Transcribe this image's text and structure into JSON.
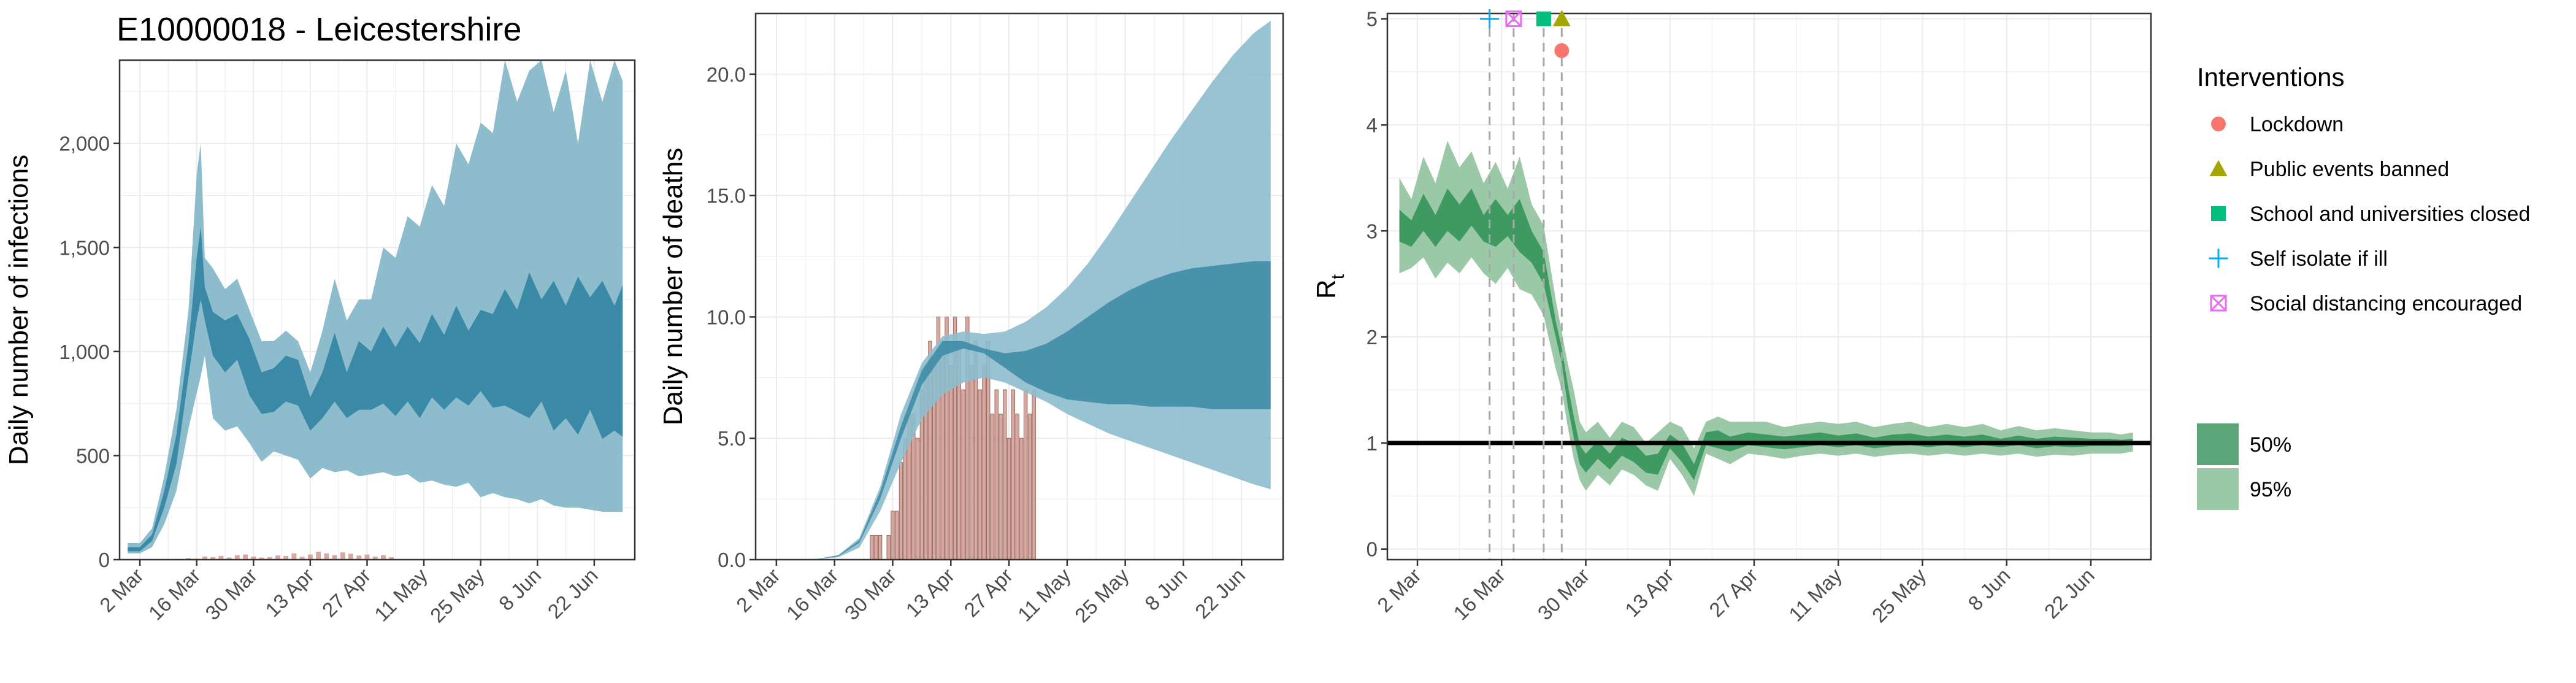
{
  "title": "E10000018 - Leicestershire",
  "x_tick_labels": [
    "2 Mar",
    "16 Mar",
    "30 Mar",
    "13 Apr",
    "27 Apr",
    "11 May",
    "25 May",
    "8 Jun",
    "22 Jun"
  ],
  "colors": {
    "infections_50": "#3a89a6",
    "infections_95": "#8dbdcd",
    "deaths_50": "#3a89a6",
    "deaths_95": "#8dbdcd",
    "deaths_bar": "#d19a90",
    "rt_50": "#3f9a62",
    "rt_95": "#9bc9a8",
    "lockdown": "#f8766d",
    "public_events": "#a3a500",
    "school": "#00bf7d",
    "self_isolate": "#00b0f6",
    "social_distancing": "#e76bf3",
    "grid": "#ebebeb",
    "panel_border": "#333333"
  },
  "chart_data": [
    {
      "name": "infections",
      "type": "area",
      "ylabel": "Daily number of infections",
      "xlim_days": [
        -5,
        122
      ],
      "ylim": [
        0,
        2400
      ],
      "y_ticks": [
        0,
        500,
        1000,
        1500,
        2000
      ],
      "y_tick_labels": [
        "0",
        "500",
        "1,000",
        "1,500",
        "2,000"
      ],
      "grid": true,
      "series": {
        "x_days": [
          -3,
          0,
          3,
          6,
          9,
          12,
          14,
          15,
          16,
          18,
          21,
          24,
          27,
          30,
          33,
          36,
          39,
          42,
          45,
          48,
          51,
          54,
          57,
          60,
          63,
          66,
          69,
          72,
          75,
          78,
          81,
          84,
          87,
          90,
          93,
          96,
          99,
          102,
          105,
          108,
          111,
          114,
          117,
          119
        ],
        "ci95_low": [
          30,
          30,
          60,
          170,
          330,
          630,
          800,
          880,
          980,
          680,
          620,
          640,
          560,
          470,
          520,
          500,
          480,
          390,
          440,
          420,
          430,
          400,
          410,
          420,
          400,
          410,
          370,
          380,
          360,
          350,
          370,
          300,
          320,
          300,
          290,
          270,
          290,
          260,
          250,
          250,
          240,
          230,
          230,
          230
        ],
        "ci95_high": [
          80,
          80,
          150,
          400,
          720,
          1200,
          1850,
          2000,
          1450,
          1400,
          1300,
          1350,
          1200,
          1050,
          1050,
          1100,
          1050,
          900,
          1100,
          1350,
          1150,
          1250,
          1250,
          1500,
          1450,
          1650,
          1600,
          1800,
          1700,
          2000,
          1900,
          2100,
          2050,
          2400,
          2200,
          2350,
          2400,
          2150,
          2350,
          2000,
          2400,
          2200,
          2400,
          2300
        ],
        "ci50_low": [
          40,
          40,
          90,
          250,
          460,
          880,
          1150,
          1250,
          1150,
          980,
          900,
          960,
          790,
          700,
          710,
          760,
          740,
          620,
          680,
          760,
          680,
          720,
          720,
          750,
          690,
          760,
          680,
          780,
          720,
          780,
          740,
          810,
          730,
          740,
          710,
          680,
          760,
          620,
          680,
          600,
          720,
          580,
          620,
          590
        ],
        "ci50_high": [
          60,
          60,
          120,
          330,
          600,
          1040,
          1450,
          1600,
          1310,
          1190,
          1150,
          1180,
          1060,
          900,
          920,
          980,
          960,
          780,
          900,
          1090,
          900,
          1050,
          1000,
          1120,
          1020,
          1120,
          1040,
          1180,
          1080,
          1220,
          1100,
          1200,
          1180,
          1300,
          1200,
          1380,
          1250,
          1340,
          1220,
          1360,
          1260,
          1340,
          1220,
          1320
        ]
      },
      "bars_x_days": [
        10,
        12,
        14,
        16,
        18,
        20,
        22,
        24,
        26,
        28,
        30,
        32,
        34,
        36,
        38,
        40,
        42,
        44,
        46,
        48,
        50,
        52,
        54,
        56,
        58,
        60,
        62
      ],
      "bars_values": [
        3,
        8,
        5,
        15,
        12,
        18,
        10,
        22,
        25,
        15,
        10,
        12,
        20,
        18,
        30,
        14,
        25,
        38,
        30,
        22,
        35,
        28,
        20,
        25,
        15,
        22,
        12
      ]
    },
    {
      "name": "deaths",
      "type": "area",
      "ylabel": "Daily number of deaths",
      "xlim_days": [
        -5,
        122
      ],
      "ylim": [
        0,
        22.5
      ],
      "y_ticks": [
        0,
        5,
        10,
        15,
        20
      ],
      "y_tick_labels": [
        "0.0",
        "5.0",
        "10.0",
        "15.0",
        "20.0"
      ],
      "grid": true,
      "series": {
        "x_days": [
          -3,
          0,
          5,
          10,
          15,
          20,
          25,
          30,
          35,
          40,
          45,
          50,
          55,
          60,
          65,
          70,
          75,
          80,
          85,
          90,
          95,
          100,
          105,
          110,
          115,
          119
        ],
        "ci95_low": [
          0,
          0,
          0,
          0.02,
          0.1,
          0.5,
          2.0,
          4.0,
          5.8,
          6.8,
          7.3,
          7.5,
          7.3,
          6.9,
          6.5,
          6.0,
          5.6,
          5.2,
          4.9,
          4.6,
          4.3,
          4.0,
          3.7,
          3.4,
          3.1,
          2.9
        ],
        "ci95_high": [
          0,
          0,
          0,
          0.03,
          0.2,
          0.9,
          3.0,
          6.0,
          8.1,
          9.2,
          9.4,
          9.3,
          9.4,
          9.8,
          10.4,
          11.2,
          12.2,
          13.4,
          14.7,
          16.0,
          17.3,
          18.5,
          19.7,
          20.8,
          21.7,
          22.2
        ],
        "ci50_low": [
          0,
          0,
          0,
          0.02,
          0.15,
          0.7,
          2.5,
          5.0,
          7.2,
          8.4,
          8.7,
          8.5,
          7.9,
          7.3,
          6.9,
          6.6,
          6.5,
          6.4,
          6.4,
          6.3,
          6.3,
          6.3,
          6.2,
          6.2,
          6.2,
          6.2
        ],
        "ci50_high": [
          0,
          0,
          0,
          0.03,
          0.18,
          0.8,
          2.8,
          5.5,
          7.8,
          9.0,
          9.0,
          8.7,
          8.5,
          8.6,
          8.9,
          9.4,
          10.0,
          10.6,
          11.1,
          11.5,
          11.8,
          12.0,
          12.1,
          12.2,
          12.3,
          12.3
        ]
      },
      "bars_x_days": [
        22,
        23,
        24,
        25,
        26,
        27,
        28,
        29,
        30,
        31,
        32,
        33,
        34,
        35,
        36,
        37,
        38,
        39,
        40,
        41,
        42,
        43,
        44,
        45,
        46,
        47,
        48,
        49,
        50,
        51,
        52,
        53,
        54,
        55,
        56,
        57,
        58,
        59,
        60,
        61,
        62
      ],
      "bars_values": [
        0,
        1,
        1,
        1,
        0,
        1,
        2,
        2,
        4,
        5,
        6,
        6,
        5,
        7,
        8,
        9,
        8,
        10,
        9,
        10,
        8,
        10,
        9,
        7,
        10,
        8,
        9,
        7,
        8,
        9,
        6,
        7,
        6,
        7,
        5,
        7,
        6,
        5,
        7,
        6,
        7
      ]
    },
    {
      "name": "rt",
      "type": "area",
      "ylabel": "R",
      "ylabel_sub": "t",
      "xlim_days": [
        -5,
        122
      ],
      "ylim": [
        -0.1,
        5.05
      ],
      "y_ticks": [
        0,
        1,
        2,
        3,
        4,
        5
      ],
      "y_tick_labels": [
        "0",
        "1",
        "2",
        "3",
        "4",
        "5"
      ],
      "reference_line": 1,
      "grid": true,
      "series": {
        "x_days": [
          -3,
          -1,
          1,
          3,
          5,
          7,
          9,
          11,
          13,
          15,
          17,
          19,
          21,
          23,
          24,
          25,
          26,
          27,
          28,
          30,
          32,
          34,
          36,
          38,
          40,
          42,
          44,
          46,
          48,
          50,
          52,
          55,
          58,
          61,
          64,
          67,
          70,
          73,
          76,
          79,
          82,
          85,
          88,
          91,
          94,
          97,
          100,
          103,
          106,
          109,
          112,
          115,
          117,
          119
        ],
        "ci95_low": [
          2.6,
          2.65,
          2.75,
          2.55,
          2.7,
          2.6,
          2.75,
          2.6,
          2.5,
          2.65,
          2.45,
          2.4,
          2.2,
          1.7,
          1.5,
          1.15,
          0.85,
          0.65,
          0.55,
          0.7,
          0.6,
          0.75,
          0.7,
          0.6,
          0.55,
          0.85,
          0.7,
          0.5,
          0.9,
          0.85,
          0.8,
          0.9,
          0.88,
          0.85,
          0.88,
          0.9,
          0.88,
          0.9,
          0.87,
          0.89,
          0.9,
          0.88,
          0.9,
          0.88,
          0.9,
          0.88,
          0.9,
          0.87,
          0.89,
          0.88,
          0.9,
          0.9,
          0.9,
          0.92
        ],
        "ci95_high": [
          3.5,
          3.3,
          3.7,
          3.45,
          3.85,
          3.6,
          3.75,
          3.45,
          3.65,
          3.4,
          3.7,
          3.25,
          3.05,
          2.35,
          2.05,
          1.75,
          1.5,
          1.2,
          1.1,
          1.2,
          1.05,
          1.2,
          1.15,
          1.0,
          1.1,
          1.2,
          1.15,
          0.95,
          1.2,
          1.25,
          1.2,
          1.2,
          1.2,
          1.15,
          1.18,
          1.2,
          1.18,
          1.2,
          1.15,
          1.18,
          1.2,
          1.15,
          1.18,
          1.15,
          1.18,
          1.12,
          1.16,
          1.12,
          1.14,
          1.12,
          1.1,
          1.1,
          1.08,
          1.1
        ],
        "ci50_low": [
          2.9,
          2.85,
          3.0,
          2.85,
          3.0,
          2.9,
          3.05,
          2.9,
          2.85,
          2.95,
          2.8,
          2.7,
          2.5,
          2.0,
          1.75,
          1.35,
          1.05,
          0.8,
          0.72,
          0.85,
          0.75,
          0.88,
          0.82,
          0.72,
          0.7,
          0.95,
          0.82,
          0.65,
          0.98,
          0.95,
          0.92,
          0.98,
          0.96,
          0.94,
          0.96,
          0.98,
          0.96,
          0.98,
          0.95,
          0.97,
          0.98,
          0.96,
          0.98,
          0.96,
          0.98,
          0.96,
          0.98,
          0.95,
          0.97,
          0.96,
          0.97,
          0.97,
          0.97,
          0.98
        ],
        "ci50_high": [
          3.2,
          3.1,
          3.35,
          3.15,
          3.4,
          3.25,
          3.4,
          3.15,
          3.3,
          3.15,
          3.3,
          3.0,
          2.8,
          2.15,
          1.9,
          1.55,
          1.25,
          0.98,
          0.9,
          1.02,
          0.9,
          1.05,
          1.0,
          0.88,
          0.9,
          1.08,
          1.0,
          0.8,
          1.1,
          1.12,
          1.06,
          1.1,
          1.08,
          1.06,
          1.08,
          1.1,
          1.07,
          1.09,
          1.05,
          1.08,
          1.09,
          1.06,
          1.08,
          1.06,
          1.08,
          1.04,
          1.07,
          1.04,
          1.06,
          1.05,
          1.04,
          1.04,
          1.03,
          1.04
        ]
      },
      "interventions": [
        {
          "name": "Self isolate if ill",
          "x_day": 12,
          "y": 5.0,
          "shape": "plus",
          "color": "#00b0f6"
        },
        {
          "name": "Social distancing encouraged",
          "x_day": 16,
          "y": 5.0,
          "shape": "boxx",
          "color": "#e76bf3"
        },
        {
          "name": "School and universities closed",
          "x_day": 21,
          "y": 5.0,
          "shape": "square",
          "color": "#00bf7d"
        },
        {
          "name": "Public events banned",
          "x_day": 24,
          "y": 5.0,
          "shape": "triangle",
          "color": "#a3a500"
        },
        {
          "name": "Lockdown",
          "x_day": 24,
          "y": 4.7,
          "shape": "circle",
          "color": "#f8766d"
        }
      ],
      "vline_days": [
        12,
        16,
        21,
        24
      ]
    }
  ],
  "legend": {
    "title": "Interventions",
    "placement": "right",
    "items": [
      {
        "label": "Lockdown",
        "shape": "circle",
        "color": "#f8766d"
      },
      {
        "label": "Public events banned",
        "shape": "triangle",
        "color": "#a3a500"
      },
      {
        "label": "School and universities closed",
        "shape": "square",
        "color": "#00bf7d"
      },
      {
        "label": "Self isolate if ill",
        "shape": "plus",
        "color": "#00b0f6"
      },
      {
        "label": "Social distancing encouraged",
        "shape": "boxx",
        "color": "#e76bf3"
      }
    ],
    "ci_items": [
      {
        "label": "50%",
        "color": "#5aa678"
      },
      {
        "label": "95%",
        "color": "#9bc9a8"
      }
    ]
  }
}
